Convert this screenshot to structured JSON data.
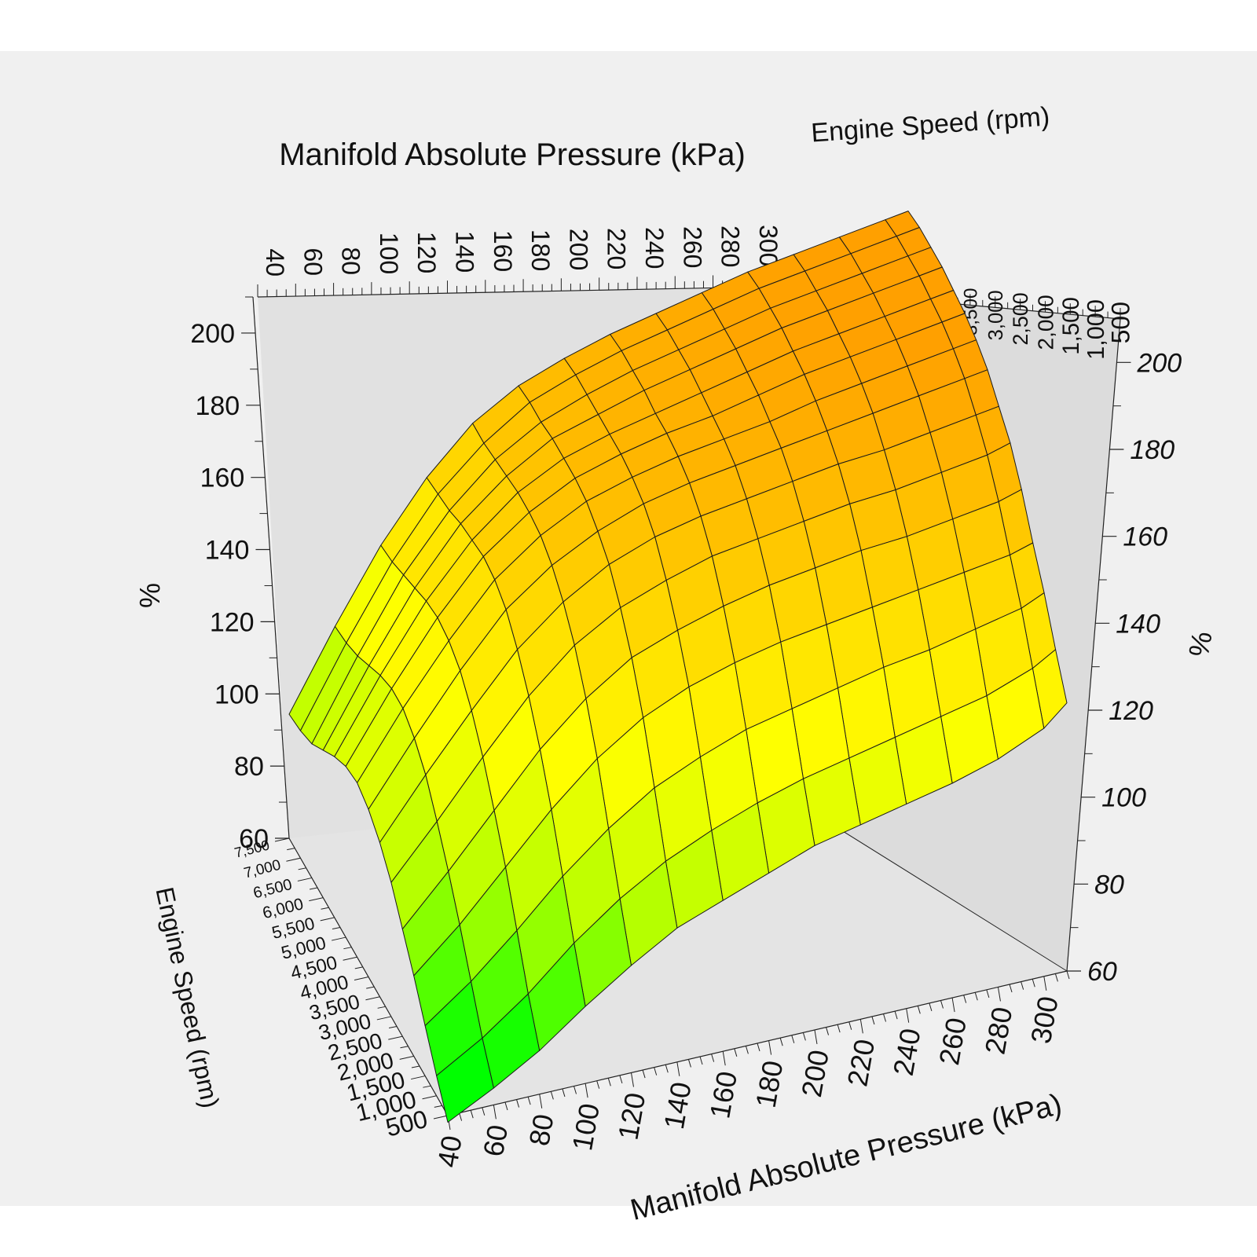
{
  "chart_data": {
    "type": "surface",
    "title": "",
    "x_axis": {
      "label": "Manifold Absolute Pressure (kPa)",
      "ticks": [
        40,
        60,
        80,
        100,
        120,
        140,
        160,
        180,
        200,
        220,
        240,
        260,
        280,
        300
      ],
      "range": [
        40,
        310
      ]
    },
    "y_axis": {
      "label": "Engine Speed (rpm)",
      "ticks": [
        "500",
        "1,000",
        "1,500",
        "2,000",
        "2,500",
        "3,000",
        "3,500",
        "4,000",
        "4,500",
        "5,000",
        "5,500",
        "6,000",
        "6,500",
        "7,000",
        "7,500"
      ],
      "range": [
        500,
        7500
      ]
    },
    "z_axis": {
      "label": "%",
      "ticks": [
        60,
        80,
        100,
        120,
        140,
        160,
        180,
        200
      ],
      "range": [
        60,
        210
      ]
    },
    "colormap": [
      "#00ff00",
      "#b4ff00",
      "#ffff00",
      "#ffd200",
      "#ffa000"
    ],
    "grid": false,
    "mesh": {
      "map_kpa": [
        40,
        60,
        80,
        100,
        120,
        140,
        160,
        180,
        200,
        220,
        240,
        260,
        280,
        300,
        310
      ],
      "rpm": [
        500,
        1000,
        1500,
        2000,
        2500,
        3000,
        3500,
        4000,
        4500,
        5000,
        5500,
        6000,
        6500,
        7000,
        7500
      ],
      "rows_by_rpm": [
        [
          58,
          65,
          73,
          83,
          92,
          100,
          105,
          110,
          115,
          118,
          121,
          124,
          128,
          134,
          140
        ],
        [
          66,
          74,
          84,
          96,
          106,
          114,
          120,
          125,
          129,
          132,
          135,
          138,
          141,
          146,
          150
        ],
        [
          75,
          85,
          97,
          110,
          121,
          130,
          136,
          141,
          144,
          147,
          150,
          152,
          155,
          158,
          161
        ],
        [
          84,
          96,
          110,
          124,
          136,
          145,
          151,
          155,
          158,
          160,
          162,
          164,
          166,
          168,
          170
        ],
        [
          92,
          106,
          121,
          136,
          148,
          157,
          162,
          166,
          169,
          171,
          173,
          174,
          176,
          178,
          180
        ],
        [
          100,
          115,
          131,
          146,
          158,
          166,
          171,
          175,
          177,
          179,
          181,
          182,
          184,
          186,
          188
        ],
        [
          106,
          123,
          139,
          154,
          165,
          173,
          178,
          181,
          183,
          185,
          187,
          188,
          190,
          192,
          193
        ],
        [
          110,
          128,
          145,
          160,
          170,
          177,
          182,
          185,
          187,
          189,
          191,
          193,
          195,
          197,
          198
        ],
        [
          112,
          131,
          148,
          163,
          173,
          180,
          184,
          187,
          189,
          191,
          194,
          196,
          198,
          200,
          201
        ],
        [
          111,
          131,
          149,
          164,
          174,
          181,
          185,
          188,
          190,
          193,
          196,
          198,
          200,
          202,
          203
        ],
        [
          108,
          129,
          148,
          163,
          174,
          181,
          185,
          188,
          191,
          194,
          197,
          199,
          201,
          203,
          204
        ],
        [
          104,
          126,
          146,
          162,
          173,
          181,
          185,
          189,
          192,
          195,
          198,
          200,
          202,
          204,
          205
        ],
        [
          100,
          123,
          144,
          160,
          172,
          180,
          185,
          189,
          192,
          195,
          198,
          200,
          202,
          204,
          205
        ],
        [
          98,
          121,
          142,
          159,
          171,
          180,
          185,
          189,
          192,
          195,
          198,
          200,
          202,
          204,
          205
        ],
        [
          97,
          120,
          141,
          158,
          171,
          179,
          184,
          188,
          191,
          194,
          197,
          199,
          201,
          203,
          204
        ]
      ]
    }
  }
}
